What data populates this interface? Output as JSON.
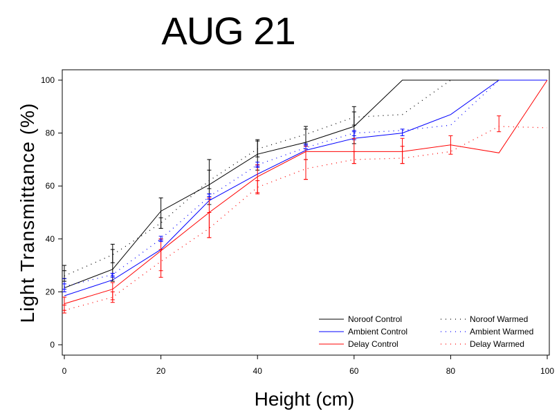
{
  "chart_data": {
    "type": "line",
    "title": "AUG 21",
    "xlabel": "Height (cm)",
    "ylabel": "Light Transmittance (%)",
    "xlim": [
      0,
      100
    ],
    "ylim": [
      0,
      100
    ],
    "xticks": [
      0,
      20,
      40,
      60,
      80,
      100
    ],
    "yticks": [
      0,
      20,
      40,
      60,
      80,
      100
    ],
    "grid": false,
    "legend_position": "bottom-right",
    "series": [
      {
        "name": "Noroof Control",
        "color": "#000000",
        "dash": "solid",
        "x": [
          0,
          10,
          20,
          30,
          40,
          50,
          60,
          70,
          80,
          90,
          100
        ],
        "y": [
          21.5,
          28.5,
          50.5,
          60.5,
          72,
          76.5,
          82.5,
          100,
          100,
          100,
          100
        ],
        "errors": [
          [
            0,
            25,
            30
          ],
          [
            10,
            24,
            38
          ],
          [
            20,
            44,
            55.5
          ],
          [
            30,
            53,
            70
          ],
          [
            40,
            66,
            77.5
          ],
          [
            50,
            70,
            82.5
          ],
          [
            60,
            76,
            90
          ]
        ]
      },
      {
        "name": "Ambient Control",
        "color": "#0000ff",
        "dash": "solid",
        "x": [
          0,
          10,
          20,
          30,
          40,
          50,
          60,
          70,
          80,
          90,
          100
        ],
        "y": [
          18.5,
          24.5,
          36,
          54.5,
          64.5,
          73.5,
          78,
          80,
          87,
          100,
          100
        ],
        "errors": [
          [
            0,
            20,
            25
          ],
          [
            10,
            26,
            27
          ],
          [
            20,
            39.5,
            40
          ],
          [
            30,
            56,
            57
          ],
          [
            40,
            67.5,
            68
          ],
          [
            50,
            75,
            76
          ],
          [
            60,
            77.5,
            80.5
          ],
          [
            70,
            79,
            81.5
          ]
        ]
      },
      {
        "name": "Delay Control",
        "color": "#ff0000",
        "dash": "solid",
        "x": [
          0,
          10,
          20,
          30,
          40,
          50,
          60,
          70,
          80,
          90,
          100
        ],
        "y": [
          15.5,
          21,
          35.5,
          50,
          63.5,
          73,
          73,
          73,
          75.5,
          72.5,
          100
        ],
        "errors": [
          [
            0,
            13,
            18
          ],
          [
            10,
            17,
            23.5
          ],
          [
            20,
            25.5,
            40
          ],
          [
            30,
            40.5,
            55.5
          ],
          [
            40,
            57.5,
            68
          ],
          [
            50,
            62.5,
            75
          ],
          [
            60,
            68.5,
            78
          ],
          [
            70,
            68.5,
            78
          ],
          [
            80,
            72,
            79
          ]
        ]
      },
      {
        "name": "Noroof Warmed",
        "color": "#000000",
        "dash": "dotted",
        "x": [
          0,
          10,
          20,
          30,
          40,
          50,
          60,
          70,
          80
        ],
        "y": [
          26,
          34,
          46,
          62,
          74,
          79.5,
          86,
          87,
          100
        ],
        "errors": [
          [
            0,
            24,
            28
          ],
          [
            10,
            31,
            36
          ],
          [
            20,
            44,
            48
          ],
          [
            30,
            59,
            66
          ],
          [
            40,
            71,
            77
          ],
          [
            50,
            75.5,
            81.5
          ],
          [
            60,
            83,
            88
          ]
        ]
      },
      {
        "name": "Ambient Warmed",
        "color": "#0000ff",
        "dash": "dotted",
        "x": [
          0,
          10,
          20,
          30,
          40,
          50,
          60,
          70,
          80,
          90
        ],
        "y": [
          22,
          26.5,
          40,
          56,
          68,
          74.5,
          80,
          81,
          83,
          100
        ],
        "errors": [
          [
            0,
            21,
            23
          ],
          [
            10,
            25.5,
            27
          ],
          [
            20,
            39,
            41
          ],
          [
            30,
            55,
            57
          ],
          [
            40,
            67,
            69
          ],
          [
            50,
            74,
            75.5
          ],
          [
            60,
            79,
            81
          ]
        ]
      },
      {
        "name": "Delay Warmed",
        "color": "#ff0000",
        "dash": "dotted",
        "x": [
          0,
          10,
          20,
          30,
          40,
          50,
          60,
          70,
          80,
          90,
          100
        ],
        "y": [
          13,
          18,
          31.5,
          44,
          59.5,
          66.5,
          70,
          70.5,
          73,
          82.5,
          82
        ],
        "errors": [
          [
            0,
            12,
            15
          ],
          [
            10,
            16,
            20
          ],
          [
            20,
            28,
            36
          ],
          [
            30,
            40.5,
            50
          ],
          [
            40,
            57,
            62
          ],
          [
            50,
            62.5,
            70
          ],
          [
            60,
            68.5,
            73
          ],
          [
            70,
            68.5,
            75
          ],
          [
            90,
            80.5,
            86.5
          ]
        ]
      }
    ]
  }
}
